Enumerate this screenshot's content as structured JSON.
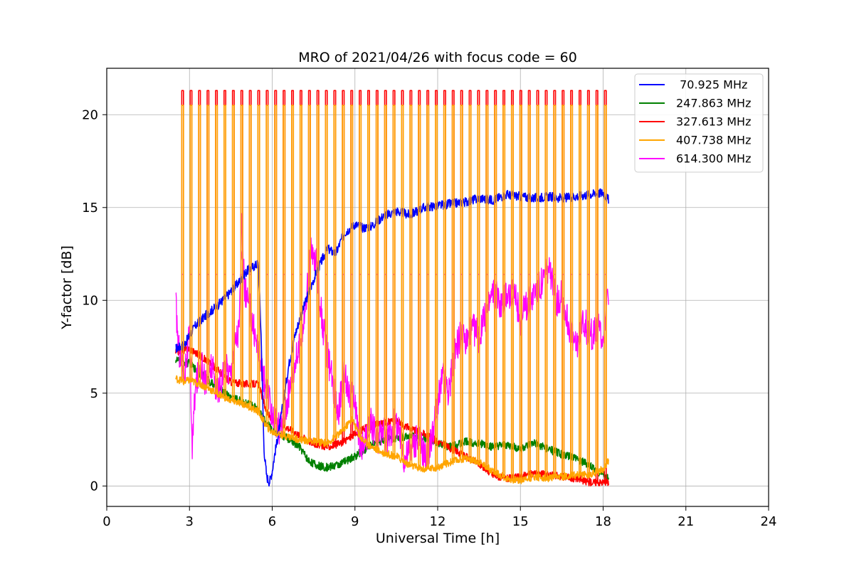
{
  "chart_data": {
    "type": "line",
    "title": "MRO of 2021/04/26 with focus code = 60",
    "xlabel": "Universal Time [h]",
    "ylabel": "Y-factor [dB]",
    "xlim": [
      0,
      24
    ],
    "ylim": [
      -1.1,
      22.5
    ],
    "xticks": [
      0,
      3,
      6,
      9,
      12,
      15,
      18,
      21,
      24
    ],
    "yticks": [
      0,
      5,
      10,
      15,
      20
    ],
    "grid": true,
    "legend_position": "top-right",
    "calibration_spikes": {
      "t_start": 2.72,
      "t_end": 18.05,
      "count": 51,
      "peak_values": {
        "327.613 MHz": 21.3,
        "407.738 MHz": 20.5,
        "614.300 MHz": 11.4
      }
    },
    "series": [
      {
        "name": " 70.925 MHz",
        "color": "#0000ff",
        "points": [
          [
            2.5,
            7.4
          ],
          [
            2.8,
            7.6
          ],
          [
            3.2,
            8.6
          ],
          [
            3.6,
            9.2
          ],
          [
            4.0,
            9.7
          ],
          [
            4.4,
            10.3
          ],
          [
            4.8,
            11.0
          ],
          [
            5.1,
            11.6
          ],
          [
            5.5,
            12.0
          ],
          [
            5.6,
            8.0
          ],
          [
            5.7,
            2.0
          ],
          [
            5.8,
            0.5
          ],
          [
            5.9,
            0.2
          ],
          [
            6.0,
            0.8
          ],
          [
            6.1,
            1.8
          ],
          [
            6.2,
            2.6
          ],
          [
            6.4,
            4.5
          ],
          [
            6.6,
            6.5
          ],
          [
            6.8,
            8.0
          ],
          [
            7.0,
            9.0
          ],
          [
            7.3,
            10.3
          ],
          [
            7.6,
            11.5
          ],
          [
            8.0,
            12.8
          ],
          [
            8.3,
            12.5
          ],
          [
            8.6,
            13.6
          ],
          [
            9.0,
            14.1
          ],
          [
            9.3,
            13.9
          ],
          [
            9.6,
            14.0
          ],
          [
            10.0,
            14.5
          ],
          [
            10.5,
            14.8
          ],
          [
            11.0,
            14.6
          ],
          [
            11.5,
            15.0
          ],
          [
            12.0,
            15.1
          ],
          [
            12.5,
            15.2
          ],
          [
            13.0,
            15.3
          ],
          [
            13.5,
            15.5
          ],
          [
            14.0,
            15.4
          ],
          [
            14.5,
            15.7
          ],
          [
            15.0,
            15.6
          ],
          [
            15.5,
            15.5
          ],
          [
            16.0,
            15.6
          ],
          [
            16.5,
            15.5
          ],
          [
            17.0,
            15.6
          ],
          [
            17.5,
            15.7
          ],
          [
            18.0,
            15.8
          ],
          [
            18.2,
            15.4
          ]
        ]
      },
      {
        "name": "247.863 MHz",
        "color": "#008000",
        "points": [
          [
            2.5,
            6.8
          ],
          [
            3.0,
            6.6
          ],
          [
            3.5,
            5.9
          ],
          [
            4.0,
            5.3
          ],
          [
            4.5,
            4.8
          ],
          [
            5.0,
            4.5
          ],
          [
            5.5,
            4.2
          ],
          [
            5.8,
            3.4
          ],
          [
            6.0,
            3.0
          ],
          [
            6.5,
            2.6
          ],
          [
            7.0,
            2.1
          ],
          [
            7.3,
            1.4
          ],
          [
            7.6,
            1.1
          ],
          [
            8.0,
            1.0
          ],
          [
            8.5,
            1.2
          ],
          [
            9.0,
            1.6
          ],
          [
            9.5,
            2.1
          ],
          [
            10.0,
            2.5
          ],
          [
            10.5,
            2.6
          ],
          [
            11.0,
            2.7
          ],
          [
            11.5,
            2.6
          ],
          [
            12.0,
            2.3
          ],
          [
            12.5,
            2.1
          ],
          [
            13.0,
            2.4
          ],
          [
            13.5,
            2.3
          ],
          [
            14.0,
            2.1
          ],
          [
            14.5,
            2.2
          ],
          [
            15.0,
            2.0
          ],
          [
            15.5,
            2.3
          ],
          [
            16.0,
            2.0
          ],
          [
            16.5,
            1.7
          ],
          [
            17.0,
            1.5
          ],
          [
            17.5,
            1.1
          ],
          [
            18.0,
            0.6
          ],
          [
            18.2,
            0.4
          ]
        ]
      },
      {
        "name": "327.613 MHz",
        "color": "#ff0000",
        "points": [
          [
            2.5,
            7.2
          ],
          [
            3.0,
            7.4
          ],
          [
            3.5,
            6.9
          ],
          [
            4.0,
            6.3
          ],
          [
            4.5,
            5.6
          ],
          [
            5.0,
            5.5
          ],
          [
            5.5,
            5.5
          ],
          [
            5.8,
            4.0
          ],
          [
            6.0,
            3.5
          ],
          [
            6.5,
            3.2
          ],
          [
            7.0,
            2.7
          ],
          [
            7.5,
            2.3
          ],
          [
            8.0,
            2.1
          ],
          [
            8.5,
            2.3
          ],
          [
            9.0,
            2.8
          ],
          [
            9.5,
            3.2
          ],
          [
            10.0,
            3.4
          ],
          [
            10.5,
            3.5
          ],
          [
            11.0,
            3.1
          ],
          [
            11.5,
            2.8
          ],
          [
            12.0,
            2.4
          ],
          [
            12.5,
            2.0
          ],
          [
            13.0,
            1.6
          ],
          [
            13.5,
            1.2
          ],
          [
            14.0,
            0.6
          ],
          [
            14.5,
            0.4
          ],
          [
            15.0,
            0.5
          ],
          [
            15.5,
            0.7
          ],
          [
            16.0,
            0.6
          ],
          [
            16.5,
            0.5
          ],
          [
            17.0,
            0.4
          ],
          [
            17.5,
            0.2
          ],
          [
            18.0,
            0.2
          ],
          [
            18.2,
            0.2
          ]
        ]
      },
      {
        "name": "407.738 MHz",
        "color": "#ffa500",
        "points": [
          [
            2.5,
            5.8
          ],
          [
            2.8,
            5.6
          ],
          [
            3.0,
            5.7
          ],
          [
            3.5,
            5.4
          ],
          [
            4.0,
            5.0
          ],
          [
            4.5,
            4.6
          ],
          [
            5.0,
            4.4
          ],
          [
            5.5,
            4.0
          ],
          [
            5.8,
            3.2
          ],
          [
            6.0,
            2.9
          ],
          [
            6.5,
            2.7
          ],
          [
            7.0,
            2.5
          ],
          [
            7.5,
            2.4
          ],
          [
            8.0,
            2.3
          ],
          [
            8.5,
            2.9
          ],
          [
            8.9,
            3.6
          ],
          [
            9.2,
            2.6
          ],
          [
            9.5,
            2.2
          ],
          [
            10.0,
            1.8
          ],
          [
            10.5,
            1.6
          ],
          [
            11.0,
            1.1
          ],
          [
            11.5,
            0.9
          ],
          [
            12.0,
            1.0
          ],
          [
            12.5,
            1.3
          ],
          [
            13.0,
            1.5
          ],
          [
            13.5,
            1.3
          ],
          [
            14.0,
            0.8
          ],
          [
            14.5,
            0.4
          ],
          [
            15.0,
            0.3
          ],
          [
            15.5,
            0.5
          ],
          [
            16.0,
            0.4
          ],
          [
            16.5,
            0.5
          ],
          [
            17.0,
            0.6
          ],
          [
            17.5,
            0.6
          ],
          [
            18.0,
            0.9
          ],
          [
            18.2,
            1.4
          ]
        ]
      },
      {
        "name": "614.300 MHz",
        "color": "#ff00ff",
        "points": [
          [
            2.5,
            9.9
          ],
          [
            2.6,
            7.5
          ],
          [
            2.8,
            6.0
          ],
          [
            3.0,
            8.0
          ],
          [
            3.1,
            2.0
          ],
          [
            3.2,
            5.0
          ],
          [
            3.4,
            6.8
          ],
          [
            3.6,
            5.5
          ],
          [
            3.8,
            6.5
          ],
          [
            4.0,
            5.0
          ],
          [
            4.3,
            6.5
          ],
          [
            4.5,
            6.0
          ],
          [
            4.6,
            7.5
          ],
          [
            4.8,
            8.5
          ],
          [
            4.9,
            13.8
          ],
          [
            5.0,
            10.5
          ],
          [
            5.2,
            9.5
          ],
          [
            5.4,
            8.0
          ],
          [
            5.6,
            6.5
          ],
          [
            5.8,
            5.0
          ],
          [
            6.0,
            4.0
          ],
          [
            6.2,
            3.0
          ],
          [
            6.4,
            3.5
          ],
          [
            6.6,
            5.0
          ],
          [
            6.8,
            6.5
          ],
          [
            7.0,
            7.5
          ],
          [
            7.2,
            9.5
          ],
          [
            7.4,
            12.5
          ],
          [
            7.6,
            12.0
          ],
          [
            7.8,
            9.0
          ],
          [
            8.0,
            7.0
          ],
          [
            8.2,
            5.5
          ],
          [
            8.4,
            4.0
          ],
          [
            8.6,
            6.0
          ],
          [
            8.8,
            5.0
          ],
          [
            9.0,
            4.5
          ],
          [
            9.2,
            2.0
          ],
          [
            9.4,
            2.5
          ],
          [
            9.6,
            3.5
          ],
          [
            9.8,
            2.5
          ],
          [
            10.0,
            3.0
          ],
          [
            10.2,
            2.5
          ],
          [
            10.5,
            3.5
          ],
          [
            10.8,
            1.5
          ],
          [
            11.0,
            2.0
          ],
          [
            11.3,
            2.5
          ],
          [
            11.6,
            1.5
          ],
          [
            11.8,
            2.8
          ],
          [
            12.0,
            4.5
          ],
          [
            12.2,
            6.0
          ],
          [
            12.4,
            5.0
          ],
          [
            12.6,
            7.0
          ],
          [
            12.8,
            8.0
          ],
          [
            13.0,
            7.8
          ],
          [
            13.3,
            8.5
          ],
          [
            13.5,
            8.0
          ],
          [
            13.8,
            9.5
          ],
          [
            14.0,
            10.5
          ],
          [
            14.3,
            9.8
          ],
          [
            14.5,
            10.5
          ],
          [
            14.8,
            10.2
          ],
          [
            15.0,
            9.0
          ],
          [
            15.3,
            10.0
          ],
          [
            15.5,
            10.5
          ],
          [
            15.8,
            11.0
          ],
          [
            16.0,
            11.8
          ],
          [
            16.3,
            10.0
          ],
          [
            16.5,
            10.2
          ],
          [
            16.8,
            8.5
          ],
          [
            17.0,
            7.5
          ],
          [
            17.3,
            9.0
          ],
          [
            17.5,
            8.0
          ],
          [
            17.8,
            8.5
          ],
          [
            18.0,
            8.0
          ],
          [
            18.2,
            10.5
          ]
        ]
      }
    ]
  }
}
